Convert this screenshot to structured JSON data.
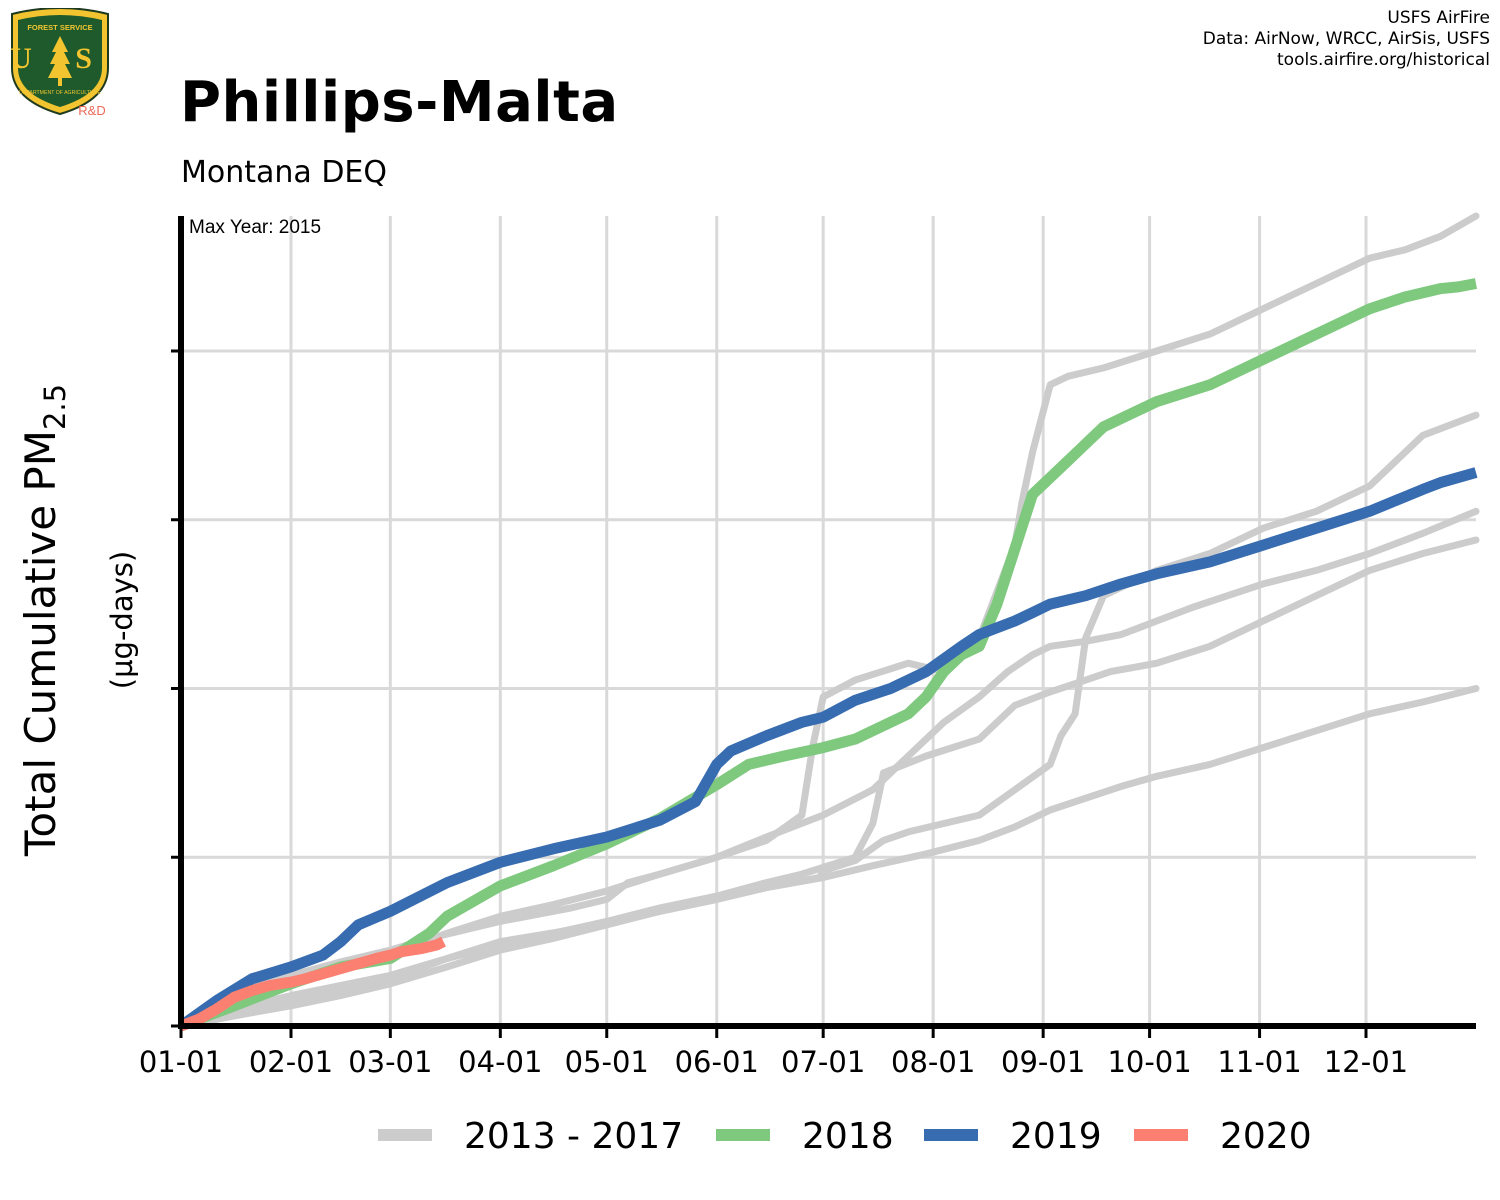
{
  "header": {
    "title": "Phillips-Malta",
    "subtitle": "Montana DEQ",
    "logo_text_top": "FOREST SERVICE",
    "logo_text_letters": "U S",
    "logo_text_bottom": "DEPARTMENT OF AGRICULTURE",
    "logo_rd": "R&D"
  },
  "credits": [
    "USFS AirFire",
    "Data: AirNow, WRCC, AirSis, USFS",
    "tools.airfire.org/historical"
  ],
  "colors": {
    "history": "#cccccc",
    "y2018": "#7fc97f",
    "y2019": "#386cb0",
    "y2020": "#fb8072",
    "grid": "#d9d9d9",
    "axis": "#000000",
    "logo_green": "#1e5a2b",
    "logo_gold": "#f2c530",
    "logo_rd": "#ef6a5a"
  },
  "chart_data": {
    "type": "line",
    "annotation": "Max Year: 2015",
    "ylabel": "Total Cumulative PM",
    "ylabel_sub": "2.5",
    "ylabel_units": "(µg-days)",
    "x_tick_labels": [
      "01-01",
      "02-01",
      "03-01",
      "04-01",
      "05-01",
      "06-01",
      "07-01",
      "08-01",
      "09-01",
      "10-01",
      "11-01",
      "12-01"
    ],
    "x_tick_days": [
      0,
      31,
      59,
      90,
      120,
      151,
      181,
      212,
      243,
      273,
      304,
      334
    ],
    "xlim": [
      0,
      365
    ],
    "ylim": [
      0,
      480
    ],
    "y_gridlines": [
      100,
      200,
      300,
      400
    ],
    "y_tick_labels_shown": false,
    "legend": [
      "2013 - 2017",
      "2018",
      "2019",
      "2020"
    ],
    "legend_position": "bottom",
    "history_series": [
      {
        "x": [
          0,
          6,
          12,
          20,
          31,
          45,
          59,
          70,
          90,
          110,
          120,
          126,
          135,
          151,
          165,
          175,
          178,
          181,
          190,
          205,
          215,
          225,
          235,
          237,
          240,
          245,
          250,
          260,
          275,
          290,
          305,
          320,
          335,
          345,
          355,
          365
        ],
        "y": [
          0,
          10,
          18,
          24,
          30,
          38,
          45,
          52,
          62,
          70,
          75,
          85,
          90,
          100,
          110,
          125,
          165,
          195,
          205,
          215,
          210,
          230,
          285,
          310,
          340,
          380,
          385,
          390,
          400,
          410,
          425,
          440,
          455,
          460,
          468,
          480
        ]
      },
      {
        "x": [
          0,
          15,
          31,
          59,
          75,
          90,
          105,
          120,
          135,
          151,
          165,
          180,
          181,
          190,
          198,
          205,
          215,
          225,
          235,
          245,
          248,
          252,
          255,
          260,
          275,
          290,
          305,
          320,
          335,
          350,
          365
        ],
        "y": [
          0,
          10,
          18,
          30,
          40,
          48,
          55,
          62,
          68,
          75,
          82,
          88,
          92,
          98,
          110,
          115,
          120,
          125,
          140,
          155,
          172,
          185,
          230,
          255,
          270,
          280,
          295,
          305,
          320,
          350,
          362
        ]
      },
      {
        "x": [
          0,
          15,
          31,
          45,
          59,
          75,
          90,
          110,
          120,
          135,
          151,
          165,
          175,
          181,
          190,
          195,
          198,
          210,
          225,
          235,
          245,
          255,
          262,
          275,
          290,
          305,
          320,
          335,
          350,
          365
        ],
        "y": [
          0,
          8,
          15,
          22,
          28,
          40,
          50,
          57,
          62,
          70,
          77,
          85,
          90,
          94,
          100,
          120,
          150,
          160,
          170,
          190,
          198,
          205,
          210,
          215,
          225,
          240,
          255,
          270,
          280,
          288
        ]
      },
      {
        "x": [
          0,
          10,
          20,
          31,
          45,
          59,
          75,
          90,
          105,
          120,
          135,
          151,
          165,
          181,
          195,
          205,
          215,
          225,
          233,
          240,
          245,
          255,
          265,
          275,
          285,
          295,
          305,
          320,
          335,
          350,
          365
        ],
        "y": [
          0,
          12,
          20,
          28,
          35,
          42,
          55,
          65,
          72,
          80,
          90,
          100,
          112,
          125,
          140,
          160,
          180,
          195,
          210,
          220,
          225,
          228,
          232,
          240,
          248,
          255,
          262,
          270,
          280,
          292,
          305
        ]
      },
      {
        "x": [
          0,
          15,
          31,
          45,
          59,
          75,
          90,
          105,
          120,
          135,
          151,
          165,
          181,
          195,
          210,
          225,
          235,
          245,
          255,
          265,
          275,
          290,
          305,
          320,
          335,
          350,
          365
        ],
        "y": [
          0,
          6,
          12,
          18,
          25,
          35,
          45,
          52,
          60,
          68,
          75,
          82,
          88,
          95,
          102,
          110,
          118,
          128,
          135,
          142,
          148,
          155,
          165,
          175,
          185,
          192,
          200
        ]
      }
    ],
    "series": [
      {
        "name": "2018",
        "x": [
          0,
          15,
          31,
          45,
          59,
          70,
          75,
          90,
          105,
          120,
          135,
          151,
          160,
          170,
          181,
          190,
          205,
          210,
          215,
          220,
          225,
          230,
          240,
          245,
          250,
          255,
          260,
          275,
          290,
          305,
          320,
          335,
          345,
          355,
          360,
          365
        ],
        "y": [
          0,
          12,
          25,
          35,
          40,
          55,
          65,
          83,
          95,
          108,
          123,
          143,
          155,
          160,
          165,
          170,
          185,
          195,
          210,
          220,
          225,
          250,
          315,
          325,
          335,
          345,
          355,
          370,
          380,
          395,
          410,
          425,
          432,
          437,
          438,
          440
        ]
      },
      {
        "name": "2019",
        "x": [
          0,
          10,
          20,
          31,
          40,
          45,
          50,
          59,
          75,
          90,
          105,
          120,
          135,
          145,
          151,
          155,
          165,
          175,
          181,
          190,
          200,
          210,
          220,
          225,
          235,
          240,
          245,
          255,
          265,
          275,
          290,
          305,
          320,
          335,
          350,
          355,
          365
        ],
        "y": [
          0,
          15,
          28,
          35,
          42,
          50,
          60,
          68,
          85,
          97,
          105,
          112,
          122,
          133,
          155,
          163,
          172,
          180,
          183,
          193,
          200,
          210,
          225,
          232,
          240,
          245,
          250,
          255,
          262,
          268,
          275,
          285,
          295,
          305,
          318,
          322,
          328
        ]
      },
      {
        "name": "2020",
        "x": [
          0,
          5,
          10,
          15,
          20,
          25,
          31,
          35,
          40,
          45,
          50,
          55,
          59,
          62,
          65,
          68,
          72,
          74
        ],
        "y": [
          0,
          4,
          10,
          17,
          21,
          24,
          26,
          28,
          31,
          34,
          37,
          40,
          42,
          44,
          45,
          46,
          48,
          50
        ]
      }
    ]
  }
}
